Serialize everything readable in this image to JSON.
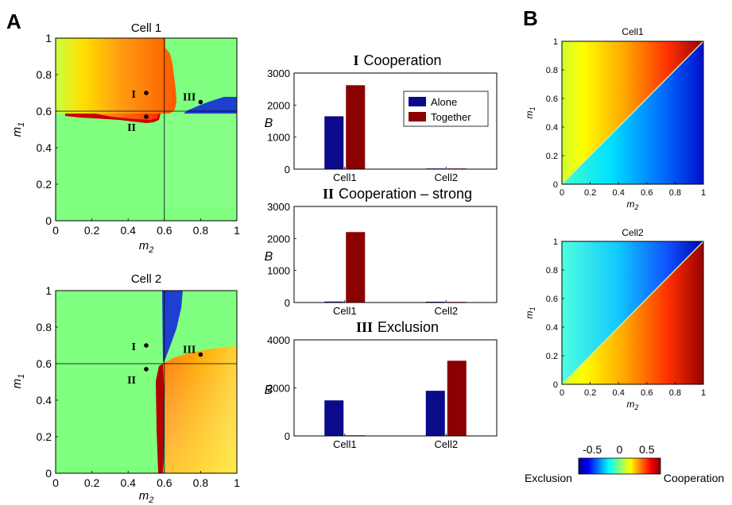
{
  "panel_letters": {
    "a": "A",
    "b": "B"
  },
  "colors": {
    "green": "#80ff80",
    "blue": "#1f3fd0",
    "dark_red": "#b30000",
    "bar_alone": "#0a0a8a",
    "bar_together": "#8b0000",
    "line": "#000000"
  },
  "colorbar": {
    "ticks": [
      "-0.5",
      "0",
      "0.5"
    ],
    "left_label": "Exclusion",
    "right_label": "Cooperation",
    "range": [
      -0.75,
      0.75
    ]
  },
  "chart_data": [
    {
      "id": "cell1-phase",
      "type": "heatmap",
      "title": "Cell 1",
      "xlabel_base": "m",
      "xlabel_sub": "2",
      "ylabel_base": "m",
      "ylabel_sub": "1",
      "xlim": [
        0,
        1
      ],
      "ylim": [
        0,
        1
      ],
      "xticks": [
        "0",
        "0.2",
        "0.4",
        "0.6",
        "0.8",
        "1"
      ],
      "yticks": [
        "0",
        "0.2",
        "0.4",
        "0.6",
        "0.8",
        "1"
      ],
      "crosshair": {
        "x": 0.6,
        "y": 0.6
      },
      "points": [
        {
          "label": "I",
          "x": 0.5,
          "y": 0.7
        },
        {
          "label": "II",
          "x": 0.5,
          "y": 0.57
        },
        {
          "label": "III",
          "x": 0.8,
          "y": 0.65
        }
      ]
    },
    {
      "id": "cell2-phase",
      "type": "heatmap",
      "title": "Cell 2",
      "xlabel_base": "m",
      "xlabel_sub": "2",
      "ylabel_base": "m",
      "ylabel_sub": "1",
      "xlim": [
        0,
        1
      ],
      "ylim": [
        0,
        1
      ],
      "xticks": [
        "0",
        "0.2",
        "0.4",
        "0.6",
        "0.8",
        "1"
      ],
      "yticks": [
        "0",
        "0.2",
        "0.4",
        "0.6",
        "0.8",
        "1"
      ],
      "crosshair": {
        "x": 0.6,
        "y": 0.6
      },
      "points": [
        {
          "label": "I",
          "x": 0.5,
          "y": 0.7
        },
        {
          "label": "II",
          "x": 0.5,
          "y": 0.57
        },
        {
          "label": "III",
          "x": 0.8,
          "y": 0.65
        }
      ]
    },
    {
      "id": "bar-I",
      "type": "bar",
      "title_numeral": "I",
      "title_text": "Cooperation",
      "ylabel": "B",
      "categories": [
        "Cell1",
        "Cell2"
      ],
      "ylim": [
        0,
        3000
      ],
      "yticks": [
        "0",
        "1000",
        "2000",
        "3000"
      ],
      "series": [
        {
          "name": "Alone",
          "values": [
            1650,
            20
          ]
        },
        {
          "name": "Together",
          "values": [
            2620,
            20
          ]
        }
      ],
      "legend": "top-right"
    },
    {
      "id": "bar-II",
      "type": "bar",
      "title_numeral": "II",
      "title_text": "Cooperation – strong",
      "ylabel": "B",
      "categories": [
        "Cell1",
        "Cell2"
      ],
      "ylim": [
        0,
        3000
      ],
      "yticks": [
        "0",
        "1000",
        "2000",
        "3000"
      ],
      "series": [
        {
          "name": "Alone",
          "values": [
            30,
            25
          ]
        },
        {
          "name": "Together",
          "values": [
            2200,
            20
          ]
        }
      ]
    },
    {
      "id": "bar-III",
      "type": "bar",
      "title_numeral": "III",
      "title_text": "Exclusion",
      "ylabel": "B",
      "categories": [
        "Cell1",
        "Cell2"
      ],
      "ylim": [
        0,
        4000
      ],
      "yticks": [
        "0",
        "2000",
        "4000"
      ],
      "series": [
        {
          "name": "Alone",
          "values": [
            1480,
            1880
          ]
        },
        {
          "name": "Together",
          "values": [
            25,
            3130
          ]
        }
      ]
    },
    {
      "id": "b-cell1",
      "type": "heatmap",
      "title": "Cell1",
      "xlabel_base": "m",
      "xlabel_sub": "2",
      "ylabel_base": "m",
      "ylabel_sub": "1",
      "xlim": [
        0,
        1
      ],
      "ylim": [
        0,
        1
      ],
      "xticks": [
        "0",
        "0.2",
        "0.4",
        "0.6",
        "0.8",
        "1"
      ],
      "yticks": [
        "0",
        "0.2",
        "0.4",
        "0.6",
        "0.8",
        "1"
      ],
      "diagonal": "y = x",
      "upper_triangle": "cooperation gradient (yellow to dark red with increasing m2)",
      "lower_triangle": "exclusion gradient (cyan to blue with increasing m2)"
    },
    {
      "id": "b-cell2",
      "type": "heatmap",
      "title": "Cell2",
      "xlabel_base": "m",
      "xlabel_sub": "2",
      "ylabel_base": "m",
      "ylabel_sub": "1",
      "xlim": [
        0,
        1
      ],
      "ylim": [
        0,
        1
      ],
      "xticks": [
        "0",
        "0.2",
        "0.4",
        "0.6",
        "0.8",
        "1"
      ],
      "yticks": [
        "0",
        "0.2",
        "0.4",
        "0.6",
        "0.8",
        "1"
      ],
      "diagonal": "y = x",
      "upper_triangle": "exclusion gradient (cyan to blue with increasing m2)",
      "lower_triangle": "cooperation gradient (yellow to dark red with increasing m2)"
    }
  ]
}
